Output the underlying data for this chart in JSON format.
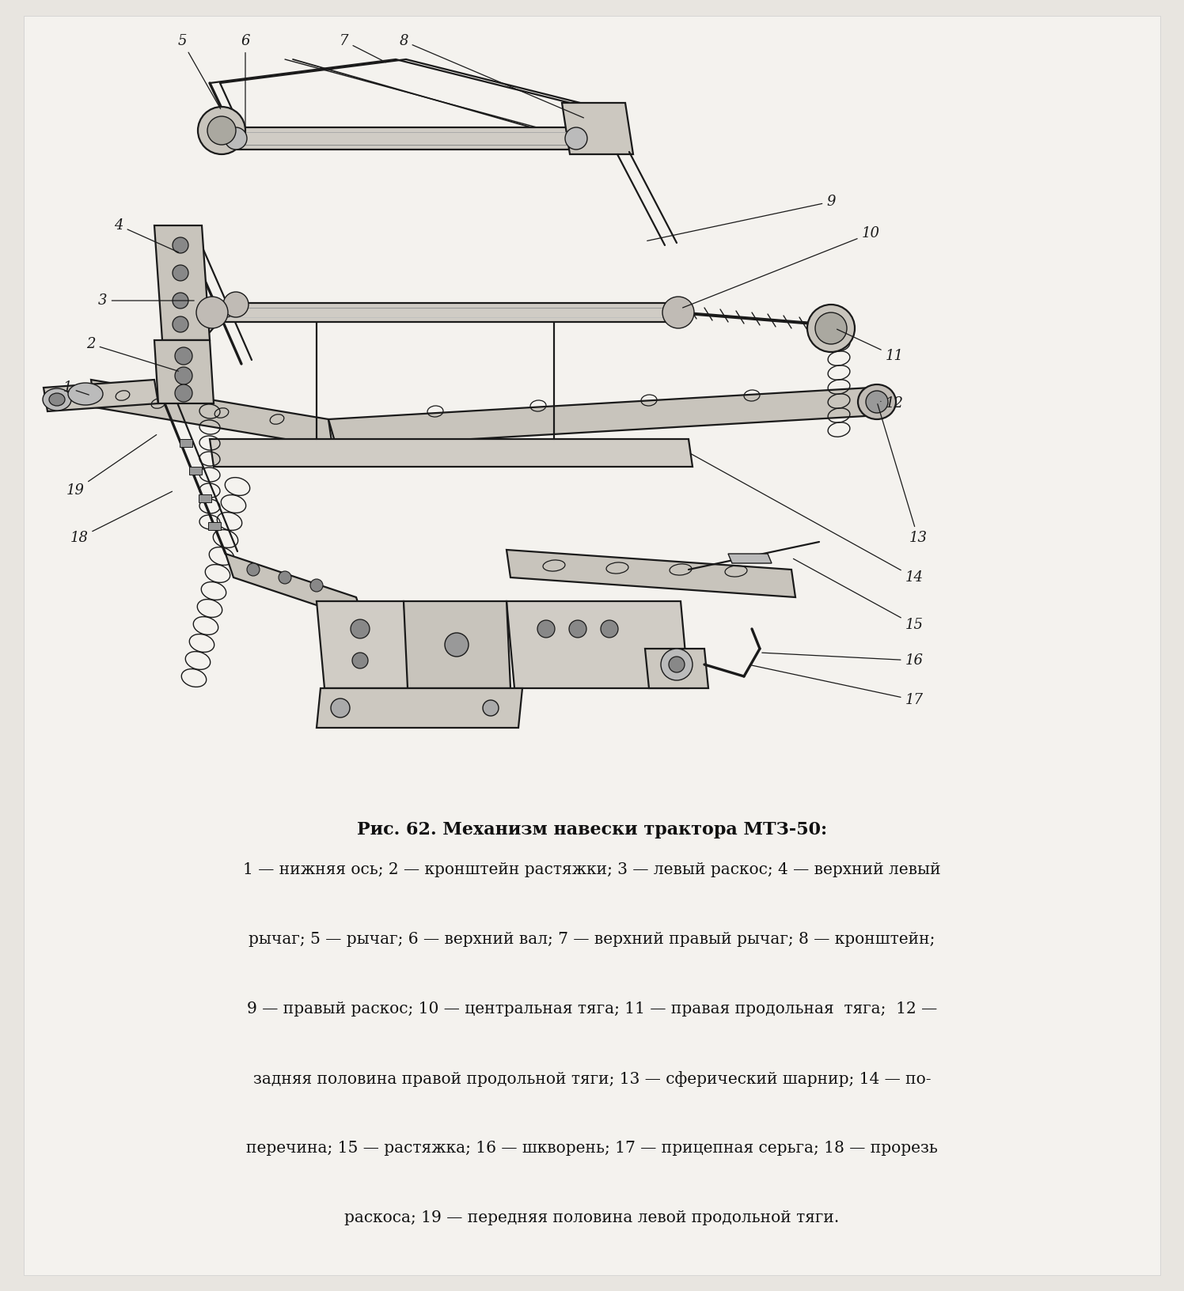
{
  "title": "Рис. 62. Механизм навески трактора МТЗ-50:",
  "title_fontsize": 16,
  "title_fontweight": "bold",
  "caption_lines": [
    "1 — нижняя ось; 2 — кронштейн растяжки; 3 — левый раскос; 4 — верхний левый",
    "рычаг; 5 — рычаг; 6 — верхний вал; 7 — верхний правый рычаг; 8 — кронштейн;",
    "9 — правый раскос; 10 — центральная тяга; 11 — правая продольная  тяга;  12 —",
    "задняя половина правой продольной тяги; 13 — сферический шарнир; 14 — по-",
    "перечина; 15 — растяжка; 16 — шкворень; 17 — прицепная серьга; 18 — прорезь",
    "раскоса; 19 — передняя половина левой продольной тяги."
  ],
  "caption_fontsize": 14.5,
  "bg_color": "#e8e5e0",
  "page_color": "#f2f0ec",
  "text_color": "#111111",
  "fig_width": 14.96,
  "fig_height": 16.32,
  "dpi": 100
}
